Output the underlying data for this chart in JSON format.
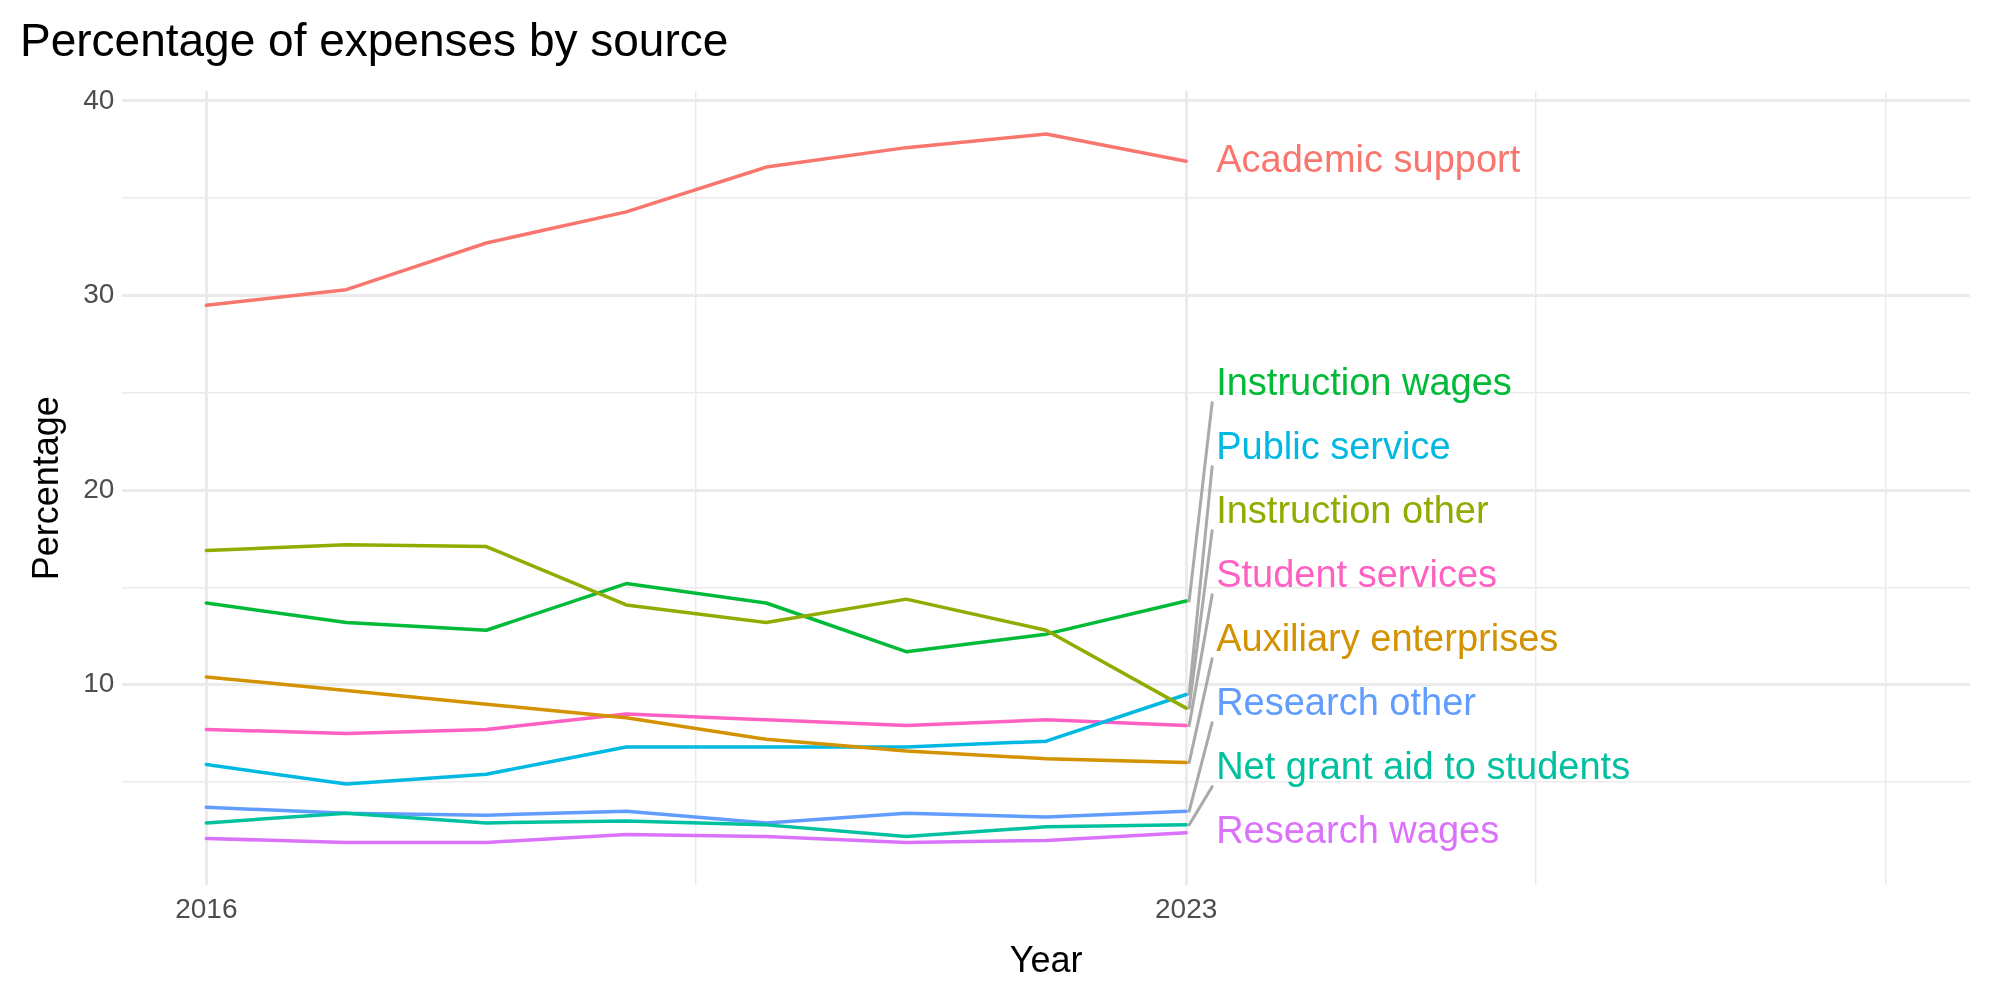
{
  "chart_data": {
    "type": "line",
    "title": "Percentage of expenses by source",
    "xlabel": "Year",
    "ylabel": "Percentage",
    "x": [
      2016,
      2017,
      2018,
      2019,
      2020,
      2021,
      2022,
      2023
    ],
    "series": [
      {
        "name": "Academic support",
        "color": "#f8766d",
        "values": [
          29.5,
          30.3,
          32.7,
          34.3,
          36.6,
          37.6,
          38.3,
          36.9
        ]
      },
      {
        "name": "Auxiliary enterprises",
        "color": "#d39200",
        "values": [
          10.4,
          9.7,
          9.0,
          8.3,
          7.2,
          6.6,
          6.2,
          6.0
        ]
      },
      {
        "name": "Instruction other",
        "color": "#93aa00",
        "values": [
          16.9,
          17.2,
          17.1,
          14.1,
          13.2,
          14.4,
          12.8,
          8.8
        ]
      },
      {
        "name": "Instruction wages",
        "color": "#00ba38",
        "values": [
          14.2,
          13.2,
          12.8,
          15.2,
          14.2,
          11.7,
          12.6,
          14.3
        ]
      },
      {
        "name": "Net grant aid to students",
        "color": "#00c19f",
        "values": [
          2.9,
          3.4,
          2.9,
          3.0,
          2.8,
          2.2,
          2.7,
          2.8
        ]
      },
      {
        "name": "Public service",
        "color": "#00b9e3",
        "values": [
          5.9,
          4.9,
          5.4,
          6.8,
          6.8,
          6.8,
          7.1,
          9.5
        ]
      },
      {
        "name": "Research other",
        "color": "#619cff",
        "values": [
          3.7,
          3.4,
          3.3,
          3.5,
          2.9,
          3.4,
          3.2,
          3.5
        ]
      },
      {
        "name": "Research wages",
        "color": "#db72fb",
        "values": [
          2.1,
          1.9,
          1.9,
          2.3,
          2.2,
          1.9,
          2.0,
          2.4
        ]
      },
      {
        "name": "Student services",
        "color": "#ff61c3",
        "values": [
          7.7,
          7.5,
          7.7,
          8.5,
          8.2,
          7.9,
          8.2,
          7.9
        ]
      }
    ],
    "xlim": [
      2015.4,
      2028.6
    ],
    "xticks": [
      2016,
      {
        "value": 2019.5,
        "label": null
      },
      2023,
      {
        "value": 2025.5,
        "label": null
      },
      {
        "value": 2028,
        "label": null
      }
    ],
    "ylim": [
      -0.3,
      40.5
    ],
    "yticks": [
      {
        "value": 5,
        "label": null
      },
      10,
      {
        "value": 15,
        "label": null
      },
      20,
      {
        "value": 25,
        "label": null
      },
      30,
      {
        "value": 35,
        "label": null
      },
      40
    ],
    "grid": true,
    "legend": false,
    "marker": "none",
    "line_style": "solid"
  }
}
